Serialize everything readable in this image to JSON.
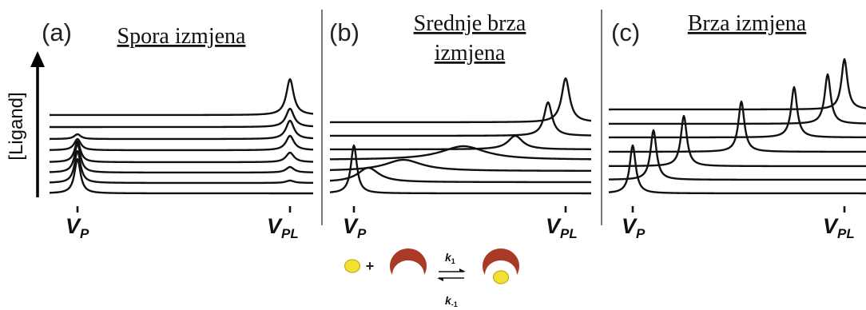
{
  "y_axis_label": "[Ligand]",
  "panels": [
    {
      "letter": "(a)",
      "title_lines": [
        "Spora izmjena"
      ],
      "x_labels": {
        "free": {
          "main": "V",
          "sub": "P"
        },
        "bound": {
          "main": "V",
          "sub": "PL"
        }
      }
    },
    {
      "letter": "(b)",
      "title_lines": [
        "Srednje brza",
        "izmjena"
      ],
      "x_labels": {
        "free": {
          "main": "V",
          "sub": "P"
        },
        "bound": {
          "main": "V",
          "sub": "PL"
        }
      }
    },
    {
      "letter": "(c)",
      "title_lines": [
        "Brza izmjena"
      ],
      "x_labels": {
        "free": {
          "main": "V",
          "sub": "P"
        },
        "bound": {
          "main": "V",
          "sub": "PL"
        }
      }
    }
  ],
  "scheme": {
    "plus": "+",
    "k_forward": {
      "main": "k",
      "sub": "1"
    },
    "k_reverse": {
      "main": "k",
      "sub": "-1"
    },
    "colors": {
      "ligand": "#f2e033",
      "protein": "#a83a26",
      "outline": "#c8a81a"
    }
  }
}
